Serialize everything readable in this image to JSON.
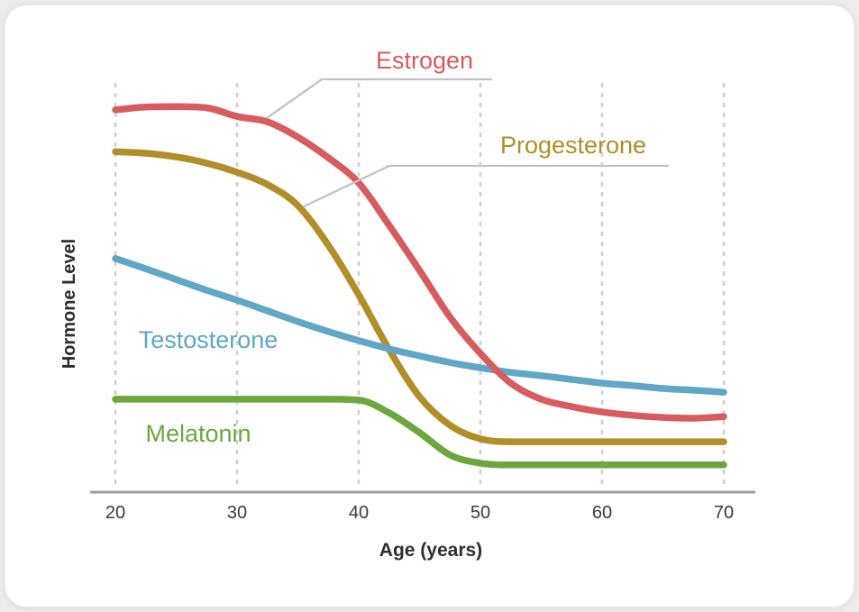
{
  "window": {
    "background_color": "#ECECEC",
    "card_background_color": "#FFFFFF"
  },
  "colors": {
    "gridline": "#CFCFCF",
    "axis_line": "#9E9E9E",
    "leader_line": "#C2C2C2",
    "axis_title_text": "#2E2E2E",
    "tick_text": "#3A3A3A"
  },
  "chart_data": {
    "type": "line",
    "title": "",
    "xlabel": "Age (years)",
    "ylabel": "Hormone Level",
    "xlim": [
      20,
      70
    ],
    "ylim": [
      0,
      100
    ],
    "x_ticks": [
      20,
      30,
      40,
      50,
      60,
      70
    ],
    "y_ticks": [],
    "grid": "vertical dashed gridlines only, no y-axis line, no y tick labels",
    "legend_position": "inline labels next to curves; Estrogen and Progesterone use gray leader lines",
    "x": [
      20,
      22.5,
      25,
      27.5,
      30,
      32.5,
      35,
      37.5,
      40,
      42.5,
      45,
      47.5,
      50,
      52.5,
      55,
      57.5,
      60,
      62.5,
      65,
      67.5,
      70
    ],
    "series": [
      {
        "name": "Estrogen",
        "color": "#D75B5F",
        "values": [
          92.6,
          93.3,
          93.4,
          93.1,
          91.0,
          89.7,
          86.0,
          81.0,
          74.9,
          64.6,
          53.7,
          42.4,
          33.6,
          26.4,
          22.5,
          20.7,
          19.4,
          18.6,
          18.1,
          17.9,
          18.3
        ]
      },
      {
        "name": "Progesterone",
        "color": "#B18E27",
        "values": [
          82.5,
          82.1,
          81.2,
          79.7,
          77.5,
          74.5,
          69.4,
          59.8,
          47.8,
          34.5,
          23.1,
          16.2,
          12.9,
          12.2,
          12.2,
          12.2,
          12.2,
          12.2,
          12.2,
          12.2,
          12.2
        ]
      },
      {
        "name": "Testosterone",
        "color": "#5FA6C7",
        "values": [
          56.6,
          54.1,
          51.5,
          48.9,
          46.5,
          43.9,
          41.3,
          38.9,
          36.7,
          34.7,
          33.0,
          31.4,
          30.1,
          29.0,
          28.2,
          27.3,
          26.4,
          25.8,
          25.1,
          24.7,
          24.2
        ]
      },
      {
        "name": "Melatonin",
        "color": "#6CA73E",
        "values": [
          22.5,
          22.5,
          22.5,
          22.5,
          22.5,
          22.5,
          22.5,
          22.5,
          22.3,
          19.2,
          14.4,
          9.0,
          7.0,
          6.6,
          6.6,
          6.6,
          6.6,
          6.6,
          6.6,
          6.6,
          6.6
        ]
      }
    ],
    "draw_order": [
      1,
      3,
      2,
      0
    ],
    "labels": [
      {
        "text": "Estrogen",
        "color": "#D75B5F"
      },
      {
        "text": "Progesterone",
        "color": "#B18E27"
      },
      {
        "text": "Testosterone",
        "color": "#5FA6C7"
      },
      {
        "text": "Melatonin",
        "color": "#6CA73E"
      }
    ]
  }
}
